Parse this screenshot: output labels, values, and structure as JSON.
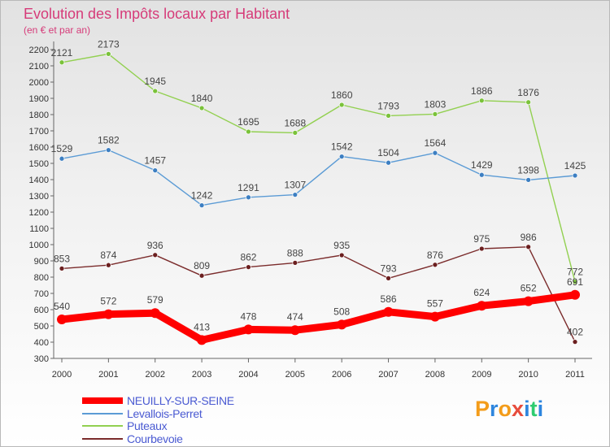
{
  "title": "Evolution des Impôts locaux par Habitant",
  "subtitle": "(en € et par an)",
  "logo": {
    "letters": [
      "P",
      "r",
      "o",
      "x",
      "i",
      "t",
      "i"
    ],
    "colors": [
      "#f39c1a",
      "#2e86de",
      "#f39c1a",
      "#e74c3c",
      "#2e86de",
      "#2ecc71",
      "#2e86de"
    ]
  },
  "chart_data": {
    "type": "line",
    "title": "Evolution des Impôts locaux par Habitant",
    "subtitle": "(en € et par an)",
    "x": [
      "2000",
      "2001",
      "2002",
      "2003",
      "2004",
      "2005",
      "2006",
      "2007",
      "2008",
      "2009",
      "2010",
      "2011"
    ],
    "ylim": [
      300,
      2200
    ],
    "yticks": [
      300,
      400,
      500,
      600,
      700,
      800,
      900,
      1000,
      1100,
      1200,
      1300,
      1400,
      1500,
      1600,
      1700,
      1800,
      1900,
      2000,
      2100,
      2200
    ],
    "grid": false,
    "legend_position": "bottom-left",
    "series": [
      {
        "name": "NEUILLY-SUR-SEINE",
        "color": "#ff0000",
        "marker": "#ff0000",
        "bold": true,
        "values": [
          540,
          572,
          579,
          413,
          478,
          474,
          508,
          586,
          557,
          624,
          652,
          691
        ]
      },
      {
        "name": "Levallois-Perret",
        "color": "#5b9bd5",
        "marker": "#3d7fc2",
        "bold": false,
        "values": [
          1529,
          1582,
          1457,
          1242,
          1291,
          1307,
          1542,
          1504,
          1564,
          1429,
          1398,
          1425
        ]
      },
      {
        "name": "Puteaux",
        "color": "#92d050",
        "marker": "#7ac23a",
        "bold": false,
        "values": [
          2121,
          2173,
          1945,
          1840,
          1695,
          1688,
          1860,
          1793,
          1803,
          1886,
          1876,
          772
        ]
      },
      {
        "name": "Courbevoie",
        "color": "#7b2c2c",
        "marker": "#6b1f1f",
        "bold": false,
        "values": [
          853,
          874,
          936,
          809,
          862,
          888,
          935,
          793,
          876,
          975,
          986,
          402
        ]
      }
    ]
  }
}
